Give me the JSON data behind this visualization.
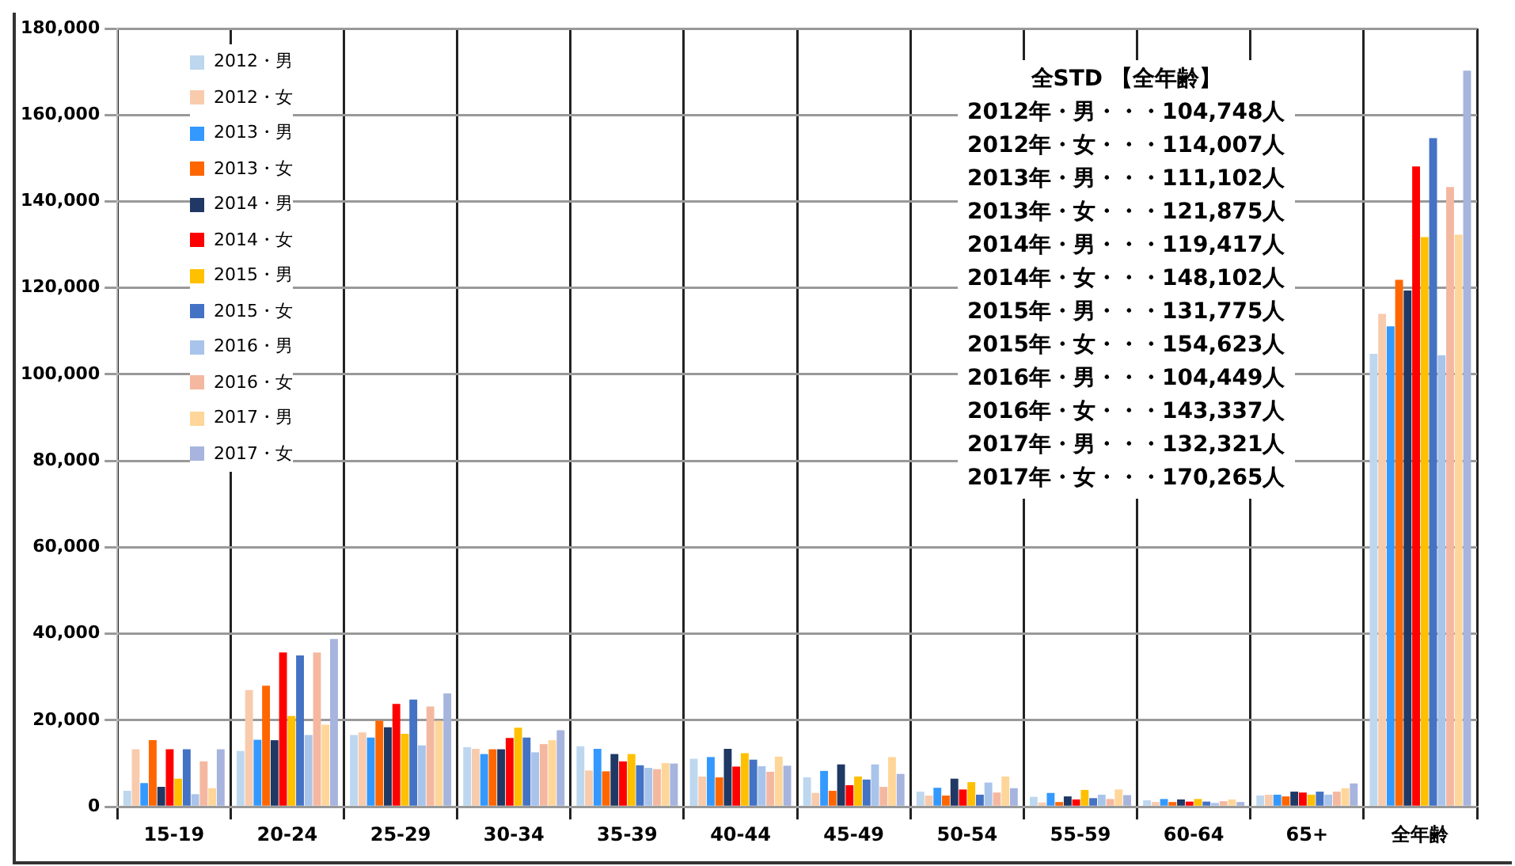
{
  "chart_data": {
    "type": "bar",
    "categories": [
      "15-19",
      "20-24",
      "25-29",
      "30-34",
      "35-39",
      "40-44",
      "45-49",
      "50-54",
      "55-59",
      "60-64",
      "65+",
      "全年齢"
    ],
    "series": [
      {
        "name": "2012・男",
        "color": "#bdd7ee",
        "values": [
          3700,
          12900,
          16600,
          13800,
          14000,
          11100,
          6800,
          3500,
          2300,
          1500,
          2600,
          104748
        ]
      },
      {
        "name": "2012・女",
        "color": "#f8cbad",
        "values": [
          13300,
          27000,
          17200,
          13400,
          8400,
          7000,
          3200,
          2600,
          1000,
          1100,
          2800,
          114007
        ]
      },
      {
        "name": "2013・男",
        "color": "#3399ff",
        "values": [
          5500,
          15500,
          16000,
          12200,
          13400,
          11500,
          8300,
          4400,
          3200,
          1800,
          2800,
          111102
        ]
      },
      {
        "name": "2013・女",
        "color": "#ff6600",
        "values": [
          15400,
          28000,
          19900,
          13300,
          8200,
          6800,
          3700,
          2600,
          1100,
          1100,
          2400,
          121875
        ]
      },
      {
        "name": "2014・男",
        "color": "#1f3864",
        "values": [
          4600,
          15400,
          18400,
          13300,
          12200,
          13400,
          9800,
          6500,
          2400,
          1700,
          3500,
          119417
        ]
      },
      {
        "name": "2014・女",
        "color": "#ff0000",
        "values": [
          13300,
          35700,
          23800,
          15900,
          10500,
          9300,
          5000,
          4000,
          1700,
          1200,
          3300,
          148102
        ]
      },
      {
        "name": "2015・男",
        "color": "#ffc000",
        "values": [
          6500,
          21000,
          16900,
          18300,
          12200,
          12400,
          7000,
          5700,
          3900,
          1800,
          2800,
          131775
        ]
      },
      {
        "name": "2015・女",
        "color": "#4472c4",
        "values": [
          13300,
          35000,
          24800,
          16000,
          9600,
          10900,
          6300,
          2800,
          2000,
          1200,
          3500,
          154623
        ]
      },
      {
        "name": "2016・男",
        "color": "#a9c4eb",
        "values": [
          2900,
          16600,
          14200,
          12600,
          9000,
          9400,
          9800,
          5600,
          2800,
          900,
          2800,
          104449
        ]
      },
      {
        "name": "2016・女",
        "color": "#f4b8a0",
        "values": [
          10500,
          35700,
          23200,
          14500,
          8700,
          8100,
          4600,
          3300,
          1800,
          1300,
          3500,
          143337
        ]
      },
      {
        "name": "2017・男",
        "color": "#ffd699",
        "values": [
          4300,
          19000,
          19900,
          15400,
          10100,
          11600,
          11500,
          7000,
          4000,
          1700,
          4300,
          132321
        ]
      },
      {
        "name": "2017・女",
        "color": "#a6b4de",
        "values": [
          13300,
          38800,
          26200,
          17700,
          10000,
          9500,
          7600,
          4300,
          2700,
          1100,
          5400,
          170265
        ]
      }
    ],
    "ylim": [
      0,
      180000
    ],
    "yticks": [
      0,
      {
        "value": 20000,
        "label": "20,000"
      },
      {
        "value": 40000,
        "label": "40,000"
      },
      {
        "value": 60000,
        "label": "60,000"
      },
      {
        "value": 80000,
        "label": "80,000"
      },
      {
        "value": 100000,
        "label": "100,000"
      },
      {
        "value": 120000,
        "label": "120,000"
      },
      {
        "value": 140000,
        "label": "140,000"
      },
      {
        "value": 160000,
        "label": "160,000"
      },
      {
        "value": 180000,
        "label": "180,000"
      }
    ],
    "grid": true,
    "legend": "top left",
    "annotations": [
      "全STD 【全年齢】",
      "2012年・男・・・104,748人",
      "2012年・女・・・114,007人",
      "2013年・男・・・111,102人",
      "2013年・女・・・121,875人",
      "2014年・男・・・119,417人",
      "2014年・女・・・148,102人",
      "2015年・男・・・131,775人",
      "2015年・女・・・154,623人",
      "2016年・男・・・104,449人",
      "2016年・女・・・143,337人",
      "2017年・男・・・132,321人",
      "2017年・女・・・170,265人"
    ]
  }
}
